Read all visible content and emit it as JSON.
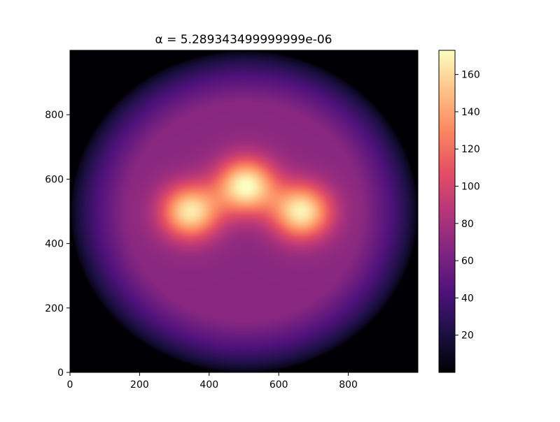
{
  "chart_data": {
    "type": "heatmap",
    "title": "α = 5.289343499999999e-06",
    "xlabel": "",
    "ylabel": "",
    "xlim": [
      0,
      1000
    ],
    "ylim": [
      0,
      1000
    ],
    "x_ticks": [
      "0",
      "200",
      "400",
      "600",
      "800"
    ],
    "y_ticks": [
      "0",
      "200",
      "400",
      "600",
      "800"
    ],
    "grid": false,
    "colormap": "magma",
    "colorbar": {
      "range": [
        0,
        173
      ],
      "ticks": [
        "20",
        "40",
        "60",
        "80",
        "100",
        "120",
        "140",
        "160"
      ]
    },
    "field": {
      "disk": {
        "center": [
          500,
          500
        ],
        "radius": 500,
        "interior_value": 68
      },
      "peaks": [
        {
          "x": 345,
          "y": 500,
          "value": 165
        },
        {
          "x": 505,
          "y": 580,
          "value": 173
        },
        {
          "x": 665,
          "y": 500,
          "value": 168
        }
      ]
    }
  },
  "colors": {
    "magma_stops": [
      "#000004",
      "#1c1044",
      "#4f127b",
      "#812581",
      "#b5367a",
      "#e55064",
      "#fb8761",
      "#fec287",
      "#fcfdbf"
    ],
    "axes_edge": "#000000",
    "background": "#ffffff"
  }
}
